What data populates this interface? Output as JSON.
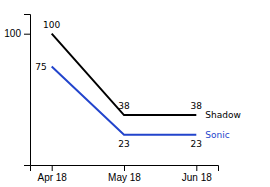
{
  "chart_data": {
    "type": "line",
    "categories": [
      "Apr 18",
      "May 18",
      "Jun 18"
    ],
    "series": [
      {
        "name": "Shadow",
        "color": "#000000",
        "values": [
          100,
          38,
          38
        ]
      },
      {
        "name": "Sonic",
        "color": "#2244CC",
        "values": [
          75,
          23,
          23
        ]
      }
    ],
    "ylim": [
      0,
      115
    ],
    "yticks": [
      100
    ],
    "grid": false,
    "data_labels": true
  }
}
